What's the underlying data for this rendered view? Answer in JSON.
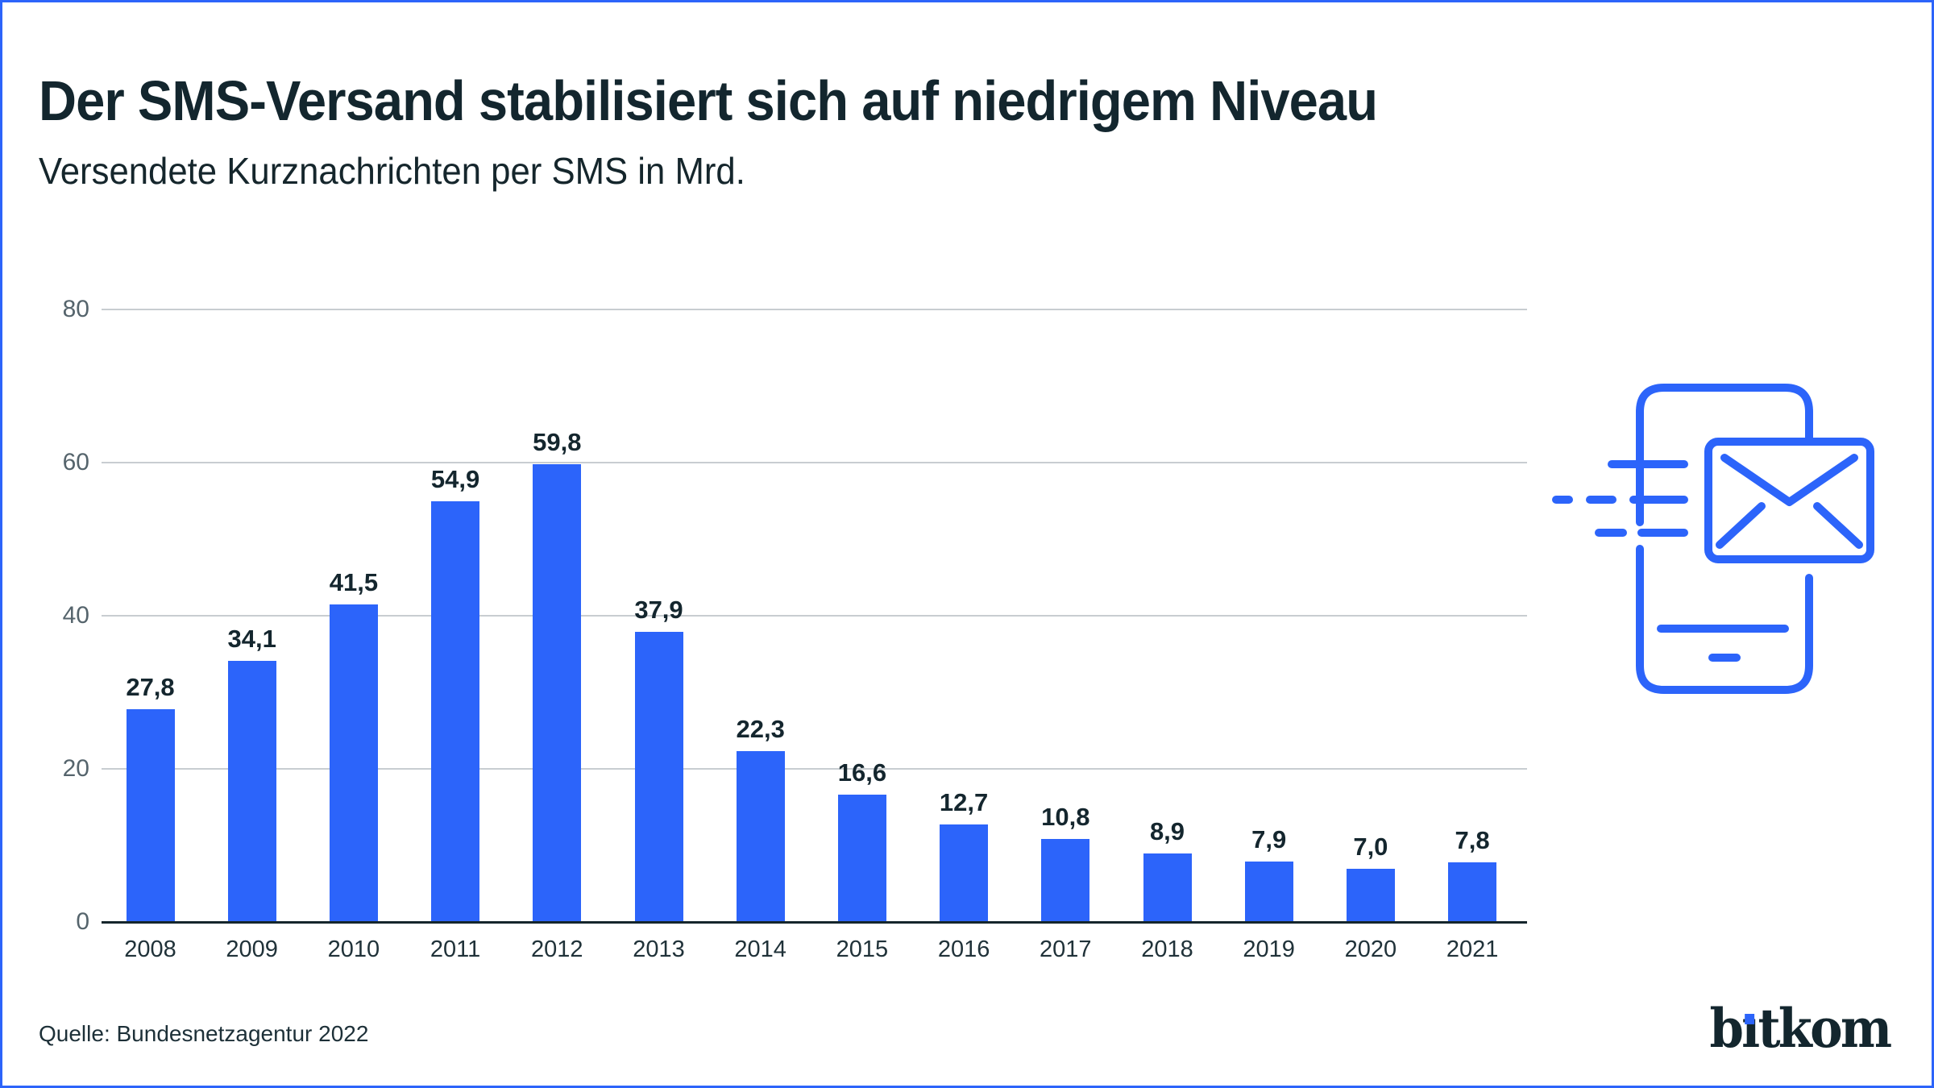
{
  "header": {
    "title": "Der SMS-Versand stabilisiert sich auf niedrigem Niveau",
    "subtitle": "Versendete Kurznachrichten per SMS in Mrd."
  },
  "chart_data": {
    "type": "bar",
    "title": "Der SMS-Versand stabilisiert sich auf niedrigem Niveau",
    "subtitle": "Versendete Kurznachrichten per SMS in Mrd.",
    "categories": [
      "2008",
      "2009",
      "2010",
      "2011",
      "2012",
      "2013",
      "2014",
      "2015",
      "2016",
      "2017",
      "2018",
      "2019",
      "2020",
      "2021"
    ],
    "values": [
      27.8,
      34.1,
      41.5,
      54.9,
      59.8,
      37.9,
      22.3,
      16.6,
      12.7,
      10.8,
      8.9,
      7.9,
      7.0,
      7.8
    ],
    "value_labels": [
      "27,8",
      "34,1",
      "41,5",
      "54,9",
      "59,8",
      "37,9",
      "22,3",
      "16,6",
      "12,7",
      "10,8",
      "8,9",
      "7,9",
      "7,0",
      "7,8"
    ],
    "xlabel": "",
    "ylabel": "",
    "ylim": [
      0,
      80
    ],
    "yticks": [
      0,
      20,
      40,
      60,
      80
    ],
    "grid": true,
    "legend_position": "none",
    "bar_color": "#2C64FA"
  },
  "footer": {
    "source": "Quelle: Bundesnetzagentur 2022",
    "logo_text": "bitkom"
  },
  "colors": {
    "accent_blue": "#2C64FA",
    "title_dark": "#13262E",
    "axis_gray": "#55646C",
    "gridline_gray": "#C8CDD1",
    "baseline_dark": "#15262C",
    "frame_border": "#2C64FA"
  },
  "icon": {
    "name": "sms-sending-phone-icon",
    "description": "smartphone with flying envelope and speed dashes",
    "color": "#2C64FA"
  }
}
